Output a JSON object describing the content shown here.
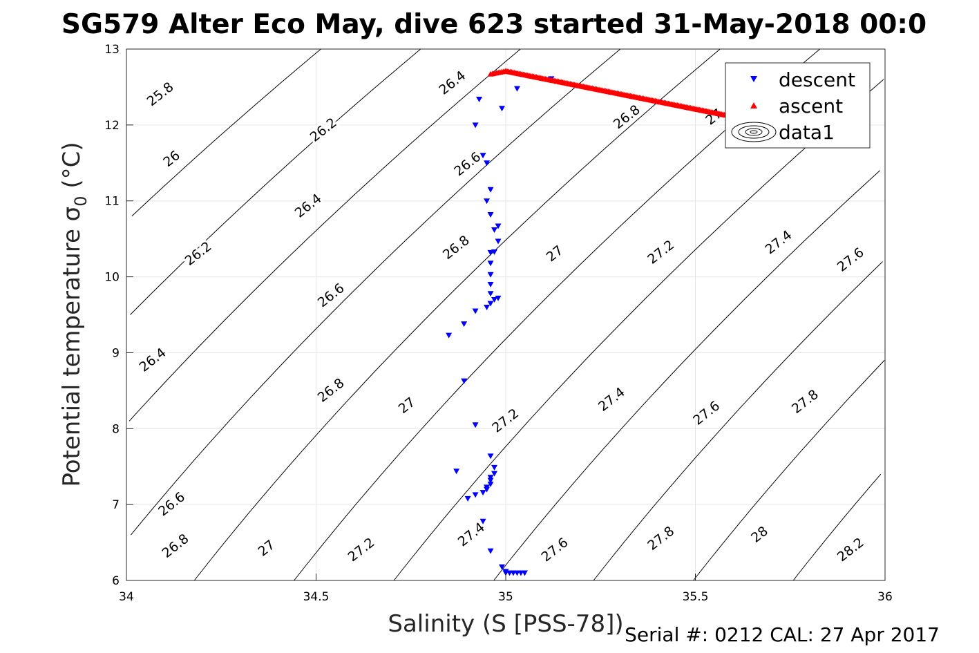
{
  "chart_data": {
    "type": "scatter",
    "title": "SG579 Alter Eco May, dive 623 started 31-May-2018 00:0",
    "xlabel": "Salinity (S [PSS-78])",
    "ylabel_main": "Potential temperature ",
    "ylabel_symbol": "σ",
    "ylabel_sub": "0",
    "ylabel_unit": " (°C)",
    "xlim": [
      34,
      36
    ],
    "ylim": [
      6,
      13
    ],
    "xticks": [
      "34",
      "34.5",
      "35",
      "35.5",
      "36"
    ],
    "yticks": [
      "6",
      "7",
      "8",
      "9",
      "10",
      "11",
      "12",
      "13"
    ],
    "grid": true,
    "legend_position": "top-right",
    "legend": [
      "descent",
      "ascent",
      "data1"
    ],
    "footer": "Serial #: 0212  CAL: 27 Apr 2017",
    "colors": {
      "descent": "#0000ff",
      "ascent": "#ff0000",
      "contour": "#000000",
      "grid": "#e6e6e6"
    },
    "contour_levels": [
      "25.8",
      "26",
      "26.2",
      "26.4",
      "26.6",
      "26.8",
      "27",
      "27.2",
      "27.4",
      "27.6",
      "27.8",
      "28",
      "28.2"
    ],
    "contour_labels": [
      {
        "text": "25.8",
        "s": 34.09,
        "t": 12.4
      },
      {
        "text": "26",
        "s": 34.12,
        "t": 11.55
      },
      {
        "text": "26.2",
        "s": 34.19,
        "t": 10.3
      },
      {
        "text": "26.4",
        "s": 34.07,
        "t": 8.9
      },
      {
        "text": "26.6",
        "s": 34.12,
        "t": 7.0
      },
      {
        "text": "26.8",
        "s": 34.13,
        "t": 6.45
      },
      {
        "text": "27",
        "s": 34.37,
        "t": 6.42
      },
      {
        "text": "27.2",
        "s": 34.62,
        "t": 6.4
      },
      {
        "text": "27.4",
        "s": 34.91,
        "t": 6.6
      },
      {
        "text": "27.6",
        "s": 35.13,
        "t": 6.4
      },
      {
        "text": "27.8",
        "s": 35.41,
        "t": 6.55
      },
      {
        "text": "28",
        "s": 35.67,
        "t": 6.6
      },
      {
        "text": "28.2",
        "s": 35.91,
        "t": 6.4
      },
      {
        "text": "26.2",
        "s": 34.52,
        "t": 11.93
      },
      {
        "text": "26.4",
        "s": 34.48,
        "t": 10.93
      },
      {
        "text": "26.6",
        "s": 34.54,
        "t": 9.75
      },
      {
        "text": "26.8",
        "s": 34.54,
        "t": 8.5
      },
      {
        "text": "27",
        "s": 34.74,
        "t": 8.3
      },
      {
        "text": "27.2",
        "s": 35.0,
        "t": 8.1
      },
      {
        "text": "27.4",
        "s": 35.28,
        "t": 8.38
      },
      {
        "text": "27.6",
        "s": 35.53,
        "t": 8.2
      },
      {
        "text": "27.8",
        "s": 35.79,
        "t": 8.35
      },
      {
        "text": "26.4",
        "s": 34.86,
        "t": 12.55
      },
      {
        "text": "26.6",
        "s": 34.9,
        "t": 11.48
      },
      {
        "text": "26.8",
        "s": 34.87,
        "t": 10.38
      },
      {
        "text": "27",
        "s": 35.13,
        "t": 10.3
      },
      {
        "text": "27.2",
        "s": 35.41,
        "t": 10.32
      },
      {
        "text": "27.4",
        "s": 35.72,
        "t": 10.45
      },
      {
        "text": "27.6",
        "s": 35.91,
        "t": 10.22
      },
      {
        "text": "26.8",
        "s": 35.32,
        "t": 12.1
      },
      {
        "text": "27",
        "s": 35.55,
        "t": 12.1
      }
    ],
    "series": [
      {
        "name": "descent",
        "marker": "triangle-down",
        "points": [
          [
            34.99,
            12.22
          ],
          [
            35.03,
            12.48
          ],
          [
            35.12,
            12.61
          ],
          [
            34.93,
            12.34
          ],
          [
            34.92,
            12.0
          ],
          [
            34.94,
            11.6
          ],
          [
            34.95,
            11.5
          ],
          [
            34.96,
            11.15
          ],
          [
            34.95,
            11.0
          ],
          [
            34.96,
            10.82
          ],
          [
            34.97,
            10.62
          ],
          [
            34.98,
            10.47
          ],
          [
            34.97,
            10.33
          ],
          [
            34.96,
            10.32
          ],
          [
            34.96,
            10.18
          ],
          [
            34.96,
            10.03
          ],
          [
            34.96,
            9.9
          ],
          [
            34.96,
            9.78
          ],
          [
            34.97,
            9.7
          ],
          [
            34.96,
            9.65
          ],
          [
            34.95,
            9.6
          ],
          [
            34.98,
            9.72
          ],
          [
            34.98,
            10.67
          ],
          [
            34.92,
            9.55
          ],
          [
            34.89,
            9.38
          ],
          [
            34.85,
            9.23
          ],
          [
            34.89,
            8.63
          ],
          [
            34.92,
            8.05
          ],
          [
            34.96,
            7.64
          ],
          [
            34.97,
            7.49
          ],
          [
            34.97,
            7.41
          ],
          [
            34.96,
            7.36
          ],
          [
            34.96,
            7.32
          ],
          [
            34.96,
            7.27
          ],
          [
            34.95,
            7.23
          ],
          [
            34.95,
            7.2
          ],
          [
            34.94,
            7.16
          ],
          [
            34.92,
            7.13
          ],
          [
            34.9,
            7.08
          ],
          [
            34.87,
            7.44
          ],
          [
            34.94,
            6.78
          ],
          [
            34.96,
            6.39
          ],
          [
            34.99,
            6.18
          ],
          [
            35.0,
            6.12
          ],
          [
            35.01,
            6.1
          ],
          [
            35.02,
            6.1
          ],
          [
            35.03,
            6.1
          ],
          [
            35.04,
            6.1
          ],
          [
            35.05,
            6.1
          ],
          [
            35.0,
            6.1
          ]
        ]
      },
      {
        "name": "ascent",
        "marker": "triangle-up",
        "line_from": [
          34.96,
          12.67
        ],
        "line_to": [
          35.58,
          12.13
        ],
        "top": [
          35.0,
          12.71
        ],
        "count": 150
      }
    ]
  }
}
